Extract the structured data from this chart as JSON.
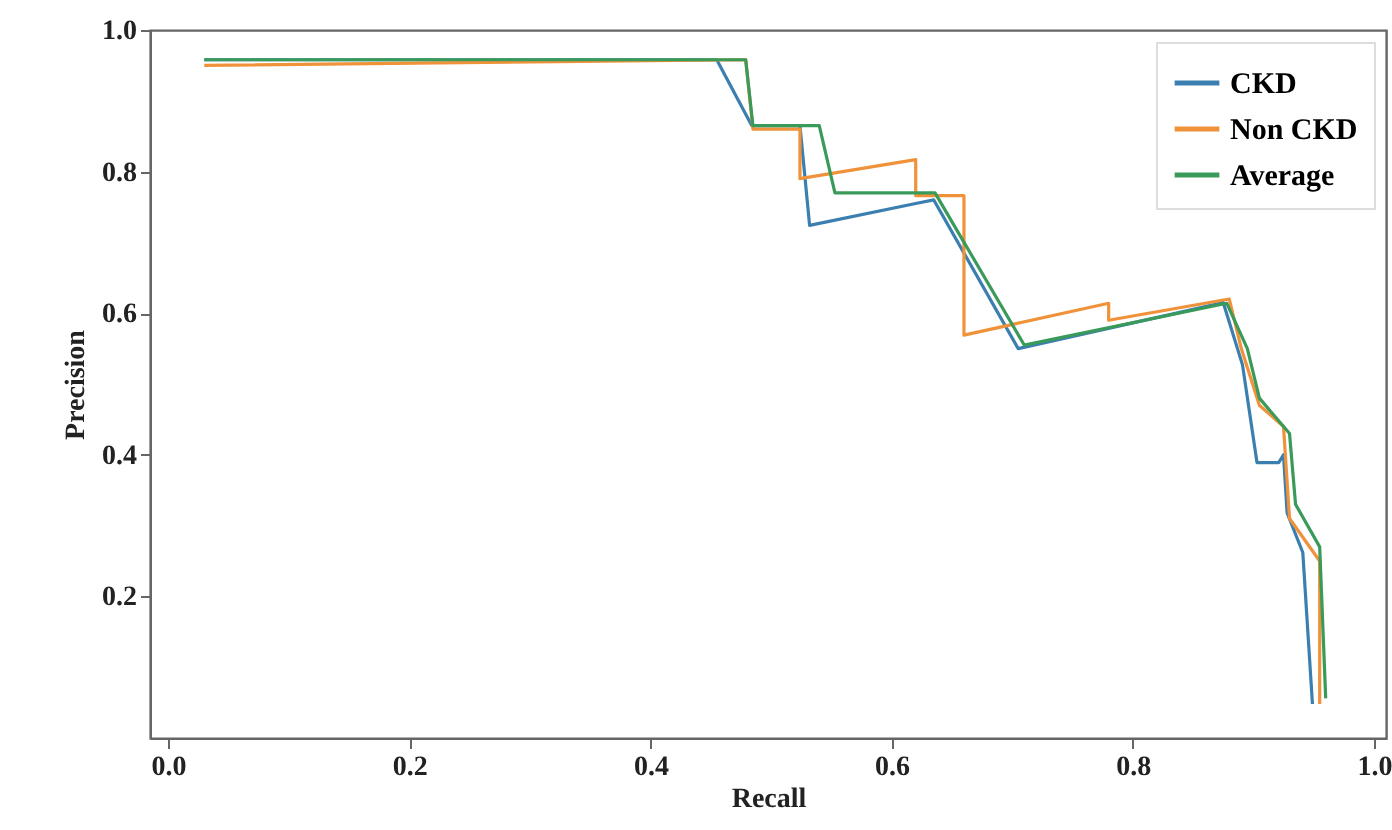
{
  "chart_data": {
    "type": "line",
    "xlabel": "Recall",
    "ylabel": "Precision",
    "xlim": [
      -0.015,
      1.01
    ],
    "ylim": [
      0,
      1
    ],
    "xticks": [
      {
        "value": 0,
        "label": "0.0"
      },
      0.2,
      0.4,
      0.6,
      0.8,
      {
        "value": 1,
        "label": "1.0"
      }
    ],
    "yticks": [
      0.2,
      0.4,
      0.6,
      0.8,
      {
        "value": 1,
        "label": "1.0"
      }
    ],
    "legend": "top right",
    "grid": false,
    "line_style": "solid",
    "series": [
      {
        "name": "CKD",
        "color": "#3a7fb0",
        "x": [
          0.03,
          0.455,
          0.484,
          0.524,
          0.532,
          0.62,
          0.635,
          0.705,
          0.875,
          0.891,
          0.903,
          0.921,
          0.925,
          0.928,
          0.941,
          0.949
        ],
        "values": [
          0.958,
          0.958,
          0.865,
          0.865,
          0.724,
          0.755,
          0.76,
          0.55,
          0.615,
          0.527,
          0.389,
          0.389,
          0.4,
          0.318,
          0.262,
          0.048
        ]
      },
      {
        "name": "Non CKD",
        "color": "#f0923a",
        "x": [
          0.03,
          0.479,
          0.485,
          0.524,
          0.524,
          0.62,
          0.62,
          0.66,
          0.66,
          0.78,
          0.78,
          0.88,
          0.89,
          0.905,
          0.925,
          0.93,
          0.955,
          0.955
        ],
        "values": [
          0.95,
          0.958,
          0.86,
          0.86,
          0.79,
          0.817,
          0.766,
          0.766,
          0.569,
          0.614,
          0.59,
          0.62,
          0.55,
          0.47,
          0.44,
          0.31,
          0.25,
          0.048
        ]
      },
      {
        "name": "Average",
        "color": "#3a9a5a",
        "x": [
          0.03,
          0.479,
          0.485,
          0.54,
          0.553,
          0.636,
          0.71,
          0.878,
          0.895,
          0.905,
          0.93,
          0.935,
          0.955,
          0.96
        ],
        "values": [
          0.958,
          0.958,
          0.865,
          0.865,
          0.77,
          0.77,
          0.555,
          0.614,
          0.55,
          0.48,
          0.43,
          0.33,
          0.27,
          0.056
        ]
      }
    ]
  }
}
